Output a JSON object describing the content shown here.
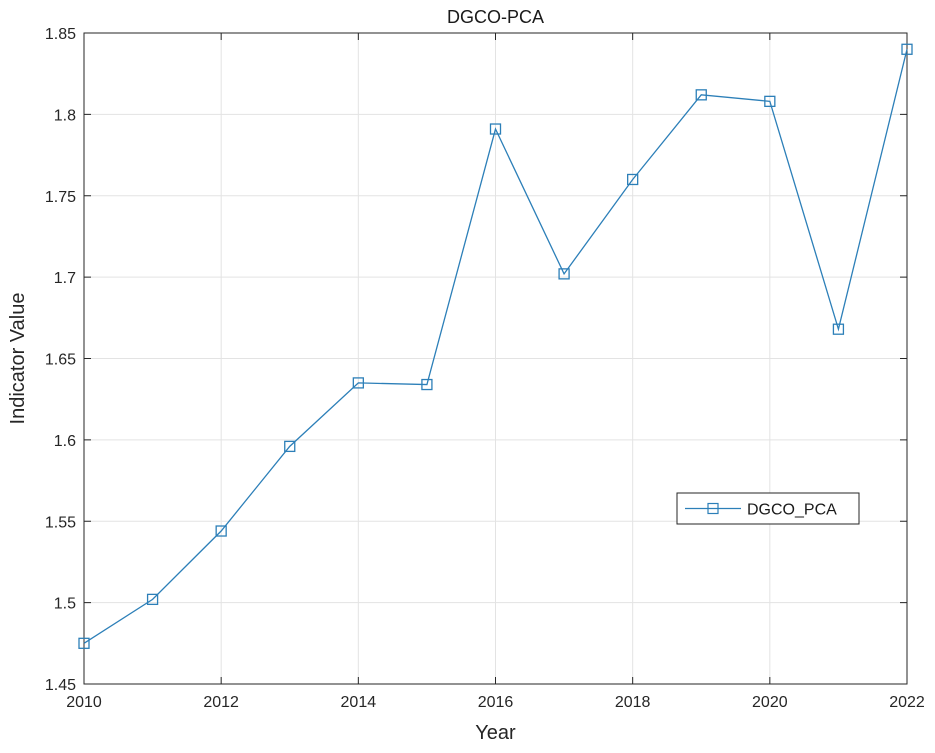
{
  "chart_data": {
    "type": "line",
    "title": "DGCO-PCA",
    "xlabel": "Year",
    "ylabel": "Indicator Value",
    "xlim": [
      2010,
      2022
    ],
    "ylim": [
      1.45,
      1.85
    ],
    "x_ticks": [
      "2010",
      "2012",
      "2014",
      "2016",
      "2018",
      "2020",
      "2022"
    ],
    "y_ticks": [
      "1.45",
      "1.5",
      "1.55",
      "1.6",
      "1.65",
      "1.7",
      "1.75",
      "1.8",
      "1.85"
    ],
    "grid": true,
    "legend_position": "right",
    "series": [
      {
        "name": "DGCO_PCA",
        "color": "#2c7fb8",
        "marker": "square",
        "x": [
          2010,
          2011,
          2012,
          2013,
          2014,
          2015,
          2016,
          2017,
          2018,
          2019,
          2020,
          2021,
          2022
        ],
        "y": [
          1.475,
          1.502,
          1.544,
          1.596,
          1.635,
          1.634,
          1.791,
          1.702,
          1.76,
          1.812,
          1.808,
          1.668,
          1.84
        ]
      }
    ]
  }
}
